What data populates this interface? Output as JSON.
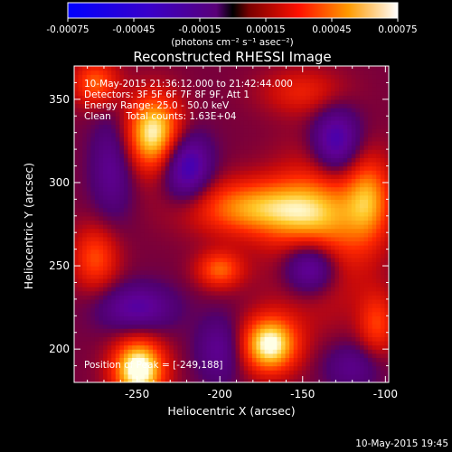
{
  "chart_data": {
    "type": "heatmap",
    "title": "Reconstructed RHESSI Image",
    "xlabel": "Heliocentric X (arcsec)",
    "ylabel": "Heliocentric Y (arcsec)",
    "xlim": [
      -288,
      -98
    ],
    "ylim": [
      180,
      370
    ],
    "x_ticks": [
      -250,
      -200,
      -150,
      -100
    ],
    "y_ticks": [
      200,
      250,
      300,
      350
    ],
    "colorbar": {
      "range": [
        -0.00075,
        0.00075
      ],
      "ticks": [
        -0.00075,
        -0.00045,
        -0.00015,
        0.00015,
        0.00045,
        0.00075
      ],
      "tick_labels": [
        "-0.00075",
        "-0.00045",
        "-0.00015",
        "0.00015",
        "0.00045",
        "0.00075"
      ],
      "unit_label": "(photons cm⁻² s⁻¹ asec⁻²)"
    },
    "annotations": [
      "10-May-2015 21:36:12.000 to 21:42:44.000",
      "Detectors: 3F 5F 6F 7F 8F 9F, Att 1",
      "Energy Range: 25.0 - 50.0 keV",
      "Clean     Total counts: 1.63E+04"
    ],
    "peak_label": "Position of Peak = [-249,188]",
    "peak": {
      "x": -249,
      "y": 188
    },
    "emission_sources": [
      {
        "x": -249,
        "y": 188,
        "sx": 11,
        "sy": 13,
        "amp": 1.0
      },
      {
        "x": -240,
        "y": 330,
        "sx": 12,
        "sy": 16,
        "amp": 0.88
      },
      {
        "x": -170,
        "y": 203,
        "sx": 12,
        "sy": 12,
        "amp": 0.92
      },
      {
        "x": -178,
        "y": 285,
        "sx": 28,
        "sy": 12,
        "amp": 0.65
      },
      {
        "x": -140,
        "y": 270,
        "sx": 20,
        "sy": 30,
        "amp": 0.6
      },
      {
        "x": -110,
        "y": 290,
        "sx": 10,
        "sy": 18,
        "amp": 0.55
      },
      {
        "x": -200,
        "y": 248,
        "sx": 10,
        "sy": 8,
        "amp": 0.5
      },
      {
        "x": -275,
        "y": 255,
        "sx": 10,
        "sy": 14,
        "amp": 0.45
      },
      {
        "x": -275,
        "y": 360,
        "sx": 10,
        "sy": 10,
        "amp": 0.5
      },
      {
        "x": -150,
        "y": 355,
        "sx": 18,
        "sy": 10,
        "amp": 0.3
      },
      {
        "x": -105,
        "y": 215,
        "sx": 8,
        "sy": 14,
        "amp": 0.4
      },
      {
        "x": -265,
        "y": 310,
        "sx": -9,
        "sy": 22,
        "amp": -0.35
      },
      {
        "x": -220,
        "y": 310,
        "sx": 10,
        "sy": 14,
        "amp": -0.65
      },
      {
        "x": -250,
        "y": 225,
        "sx": 16,
        "sy": 10,
        "amp": -0.45
      },
      {
        "x": -145,
        "y": 250,
        "sx": 12,
        "sy": 12,
        "amp": -0.8
      },
      {
        "x": -130,
        "y": 325,
        "sx": 10,
        "sy": 14,
        "amp": -0.6
      },
      {
        "x": -200,
        "y": 200,
        "sx": 10,
        "sy": 14,
        "amp": -0.35
      },
      {
        "x": -120,
        "y": 190,
        "sx": 12,
        "sy": 10,
        "amp": -0.3
      }
    ]
  },
  "footer": {
    "timestamp": "10-May-2015 19:45"
  }
}
